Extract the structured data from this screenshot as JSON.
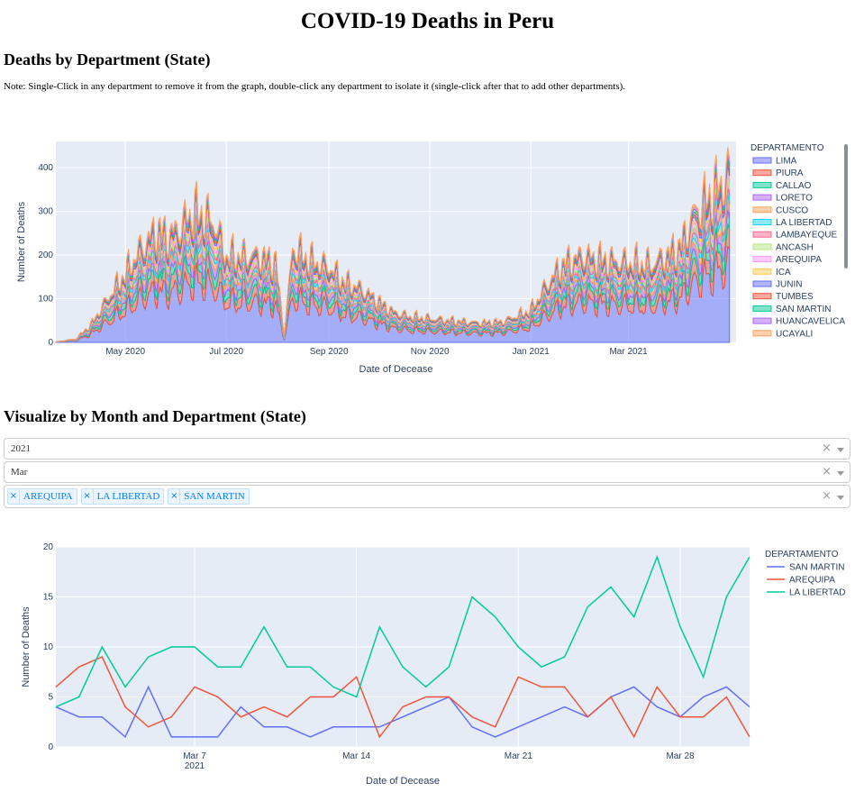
{
  "page": {
    "title": "COVID-19 Deaths in Peru",
    "section1_title": "Deaths by Department (State)",
    "note": "Note: Single-Click in any department to remove it from the graph, double-click any department to isolate it (single-click after that to add other departments).",
    "section2_title": "Visualize by Month and Department (State)"
  },
  "filters": {
    "year": "2021",
    "month": "Mar",
    "departments": [
      "AREQUIPA",
      "LA LIBERTAD",
      "SAN MARTIN"
    ],
    "clear_symbol": "×"
  },
  "colors": {
    "plot_bg": "#e5ecf6",
    "grid": "#ffffff",
    "palette": [
      "#636efa",
      "#ef553b",
      "#00cc96",
      "#ab63fa",
      "#ffa15a",
      "#19d3f3",
      "#ff6692",
      "#b6e880",
      "#ff97ff",
      "#fecb52"
    ]
  },
  "chart_data": [
    {
      "type": "area",
      "subtype": "stacked",
      "xlabel": "Date of Decease",
      "ylabel": "Number of Deaths",
      "x_range": [
        "2020-03-20",
        "2021-05-05"
      ],
      "x_ticks": [
        {
          "date": "2020-05-01",
          "label": "May 2020"
        },
        {
          "date": "2020-07-01",
          "label": "Jul 2020"
        },
        {
          "date": "2020-09-01",
          "label": "Sep 2020"
        },
        {
          "date": "2020-11-01",
          "label": "Nov 2020"
        },
        {
          "date": "2021-01-01",
          "label": "Jan 2021"
        },
        {
          "date": "2021-03-01",
          "label": "Mar 2021"
        }
      ],
      "ylim": [
        0,
        460
      ],
      "y_ticks": [
        0,
        100,
        200,
        300,
        400
      ],
      "legend_title": "DEPARTAMENTO",
      "legend_placement": "right",
      "legend_entries": [
        "LIMA",
        "PIURA",
        "CALLAO",
        "LORETO",
        "CUSCO",
        "LA LIBERTAD",
        "LAMBAYEQUE",
        "ANCASH",
        "AREQUIPA",
        "ICA",
        "JUNIN",
        "TUMBES",
        "SAN MARTIN",
        "HUANCAVELICA",
        "UCAYALI"
      ],
      "total_series_points": [
        [
          "2020-03-20",
          1
        ],
        [
          "2020-04-01",
          8
        ],
        [
          "2020-04-10",
          40
        ],
        [
          "2020-04-20",
          100
        ],
        [
          "2020-05-01",
          160
        ],
        [
          "2020-05-10",
          215
        ],
        [
          "2020-05-20",
          260
        ],
        [
          "2020-05-27",
          245
        ],
        [
          "2020-06-03",
          265
        ],
        [
          "2020-06-10",
          300
        ],
        [
          "2020-06-17",
          295
        ],
        [
          "2020-06-24",
          275
        ],
        [
          "2020-07-01",
          200
        ],
        [
          "2020-07-10",
          200
        ],
        [
          "2020-07-20",
          200
        ],
        [
          "2020-07-31",
          185
        ],
        [
          "2020-08-05",
          15
        ],
        [
          "2020-08-10",
          220
        ],
        [
          "2020-08-20",
          190
        ],
        [
          "2020-09-01",
          175
        ],
        [
          "2020-09-10",
          140
        ],
        [
          "2020-09-20",
          125
        ],
        [
          "2020-10-01",
          95
        ],
        [
          "2020-10-10",
          70
        ],
        [
          "2020-10-20",
          60
        ],
        [
          "2020-11-01",
          55
        ],
        [
          "2020-11-15",
          50
        ],
        [
          "2020-12-01",
          45
        ],
        [
          "2020-12-15",
          48
        ],
        [
          "2021-01-01",
          75
        ],
        [
          "2021-01-10",
          130
        ],
        [
          "2021-01-20",
          180
        ],
        [
          "2021-02-01",
          200
        ],
        [
          "2021-02-15",
          190
        ],
        [
          "2021-03-01",
          185
        ],
        [
          "2021-03-15",
          180
        ],
        [
          "2021-04-01",
          220
        ],
        [
          "2021-04-10",
          300
        ],
        [
          "2021-04-20",
          340
        ],
        [
          "2021-05-01",
          390
        ]
      ],
      "lima_share": 0.45
    },
    {
      "type": "line",
      "xlabel": "Date of Decease",
      "ylabel": "Number of Deaths",
      "x_range": [
        "2021-03-01",
        "2021-04-01"
      ],
      "x_ticks": [
        {
          "date": "2021-03-07",
          "label": "Mar 7",
          "sub": "2021"
        },
        {
          "date": "2021-03-14",
          "label": "Mar 14",
          "sub": ""
        },
        {
          "date": "2021-03-21",
          "label": "Mar 21",
          "sub": ""
        },
        {
          "date": "2021-03-28",
          "label": "Mar 28",
          "sub": ""
        }
      ],
      "ylim": [
        0,
        20
      ],
      "y_ticks": [
        0,
        5,
        10,
        15,
        20
      ],
      "legend_title": "DEPARTAMENTO",
      "legend_placement": "right",
      "x_dates": [
        "2021-03-01",
        "2021-03-02",
        "2021-03-03",
        "2021-03-04",
        "2021-03-05",
        "2021-03-06",
        "2021-03-07",
        "2021-03-08",
        "2021-03-09",
        "2021-03-10",
        "2021-03-11",
        "2021-03-12",
        "2021-03-13",
        "2021-03-14",
        "2021-03-15",
        "2021-03-16",
        "2021-03-17",
        "2021-03-18",
        "2021-03-19",
        "2021-03-20",
        "2021-03-21",
        "2021-03-22",
        "2021-03-23",
        "2021-03-24",
        "2021-03-25",
        "2021-03-26",
        "2021-03-27",
        "2021-03-28",
        "2021-03-29",
        "2021-03-30",
        "2021-03-31"
      ],
      "series": [
        {
          "name": "SAN MARTIN",
          "color": "#636efa",
          "values": [
            4,
            3,
            3,
            1,
            6,
            1,
            1,
            1,
            4,
            2,
            2,
            1,
            2,
            2,
            2,
            3,
            4,
            5,
            2,
            1,
            2,
            3,
            4,
            3,
            5,
            6,
            4,
            3,
            5,
            6,
            4
          ]
        },
        {
          "name": "AREQUIPA",
          "color": "#ef553b",
          "values": [
            6,
            8,
            9,
            4,
            2,
            3,
            6,
            5,
            3,
            4,
            3,
            5,
            5,
            7,
            1,
            4,
            5,
            5,
            3,
            2,
            7,
            6,
            6,
            3,
            5,
            1,
            6,
            3,
            3,
            5,
            1
          ]
        },
        {
          "name": "LA LIBERTAD",
          "color": "#00cc96",
          "values": [
            4,
            5,
            10,
            6,
            9,
            10,
            10,
            8,
            8,
            12,
            8,
            8,
            6,
            5,
            12,
            8,
            6,
            8,
            15,
            13,
            10,
            8,
            9,
            14,
            16,
            13,
            19,
            12,
            7,
            15,
            19
          ]
        }
      ]
    }
  ]
}
